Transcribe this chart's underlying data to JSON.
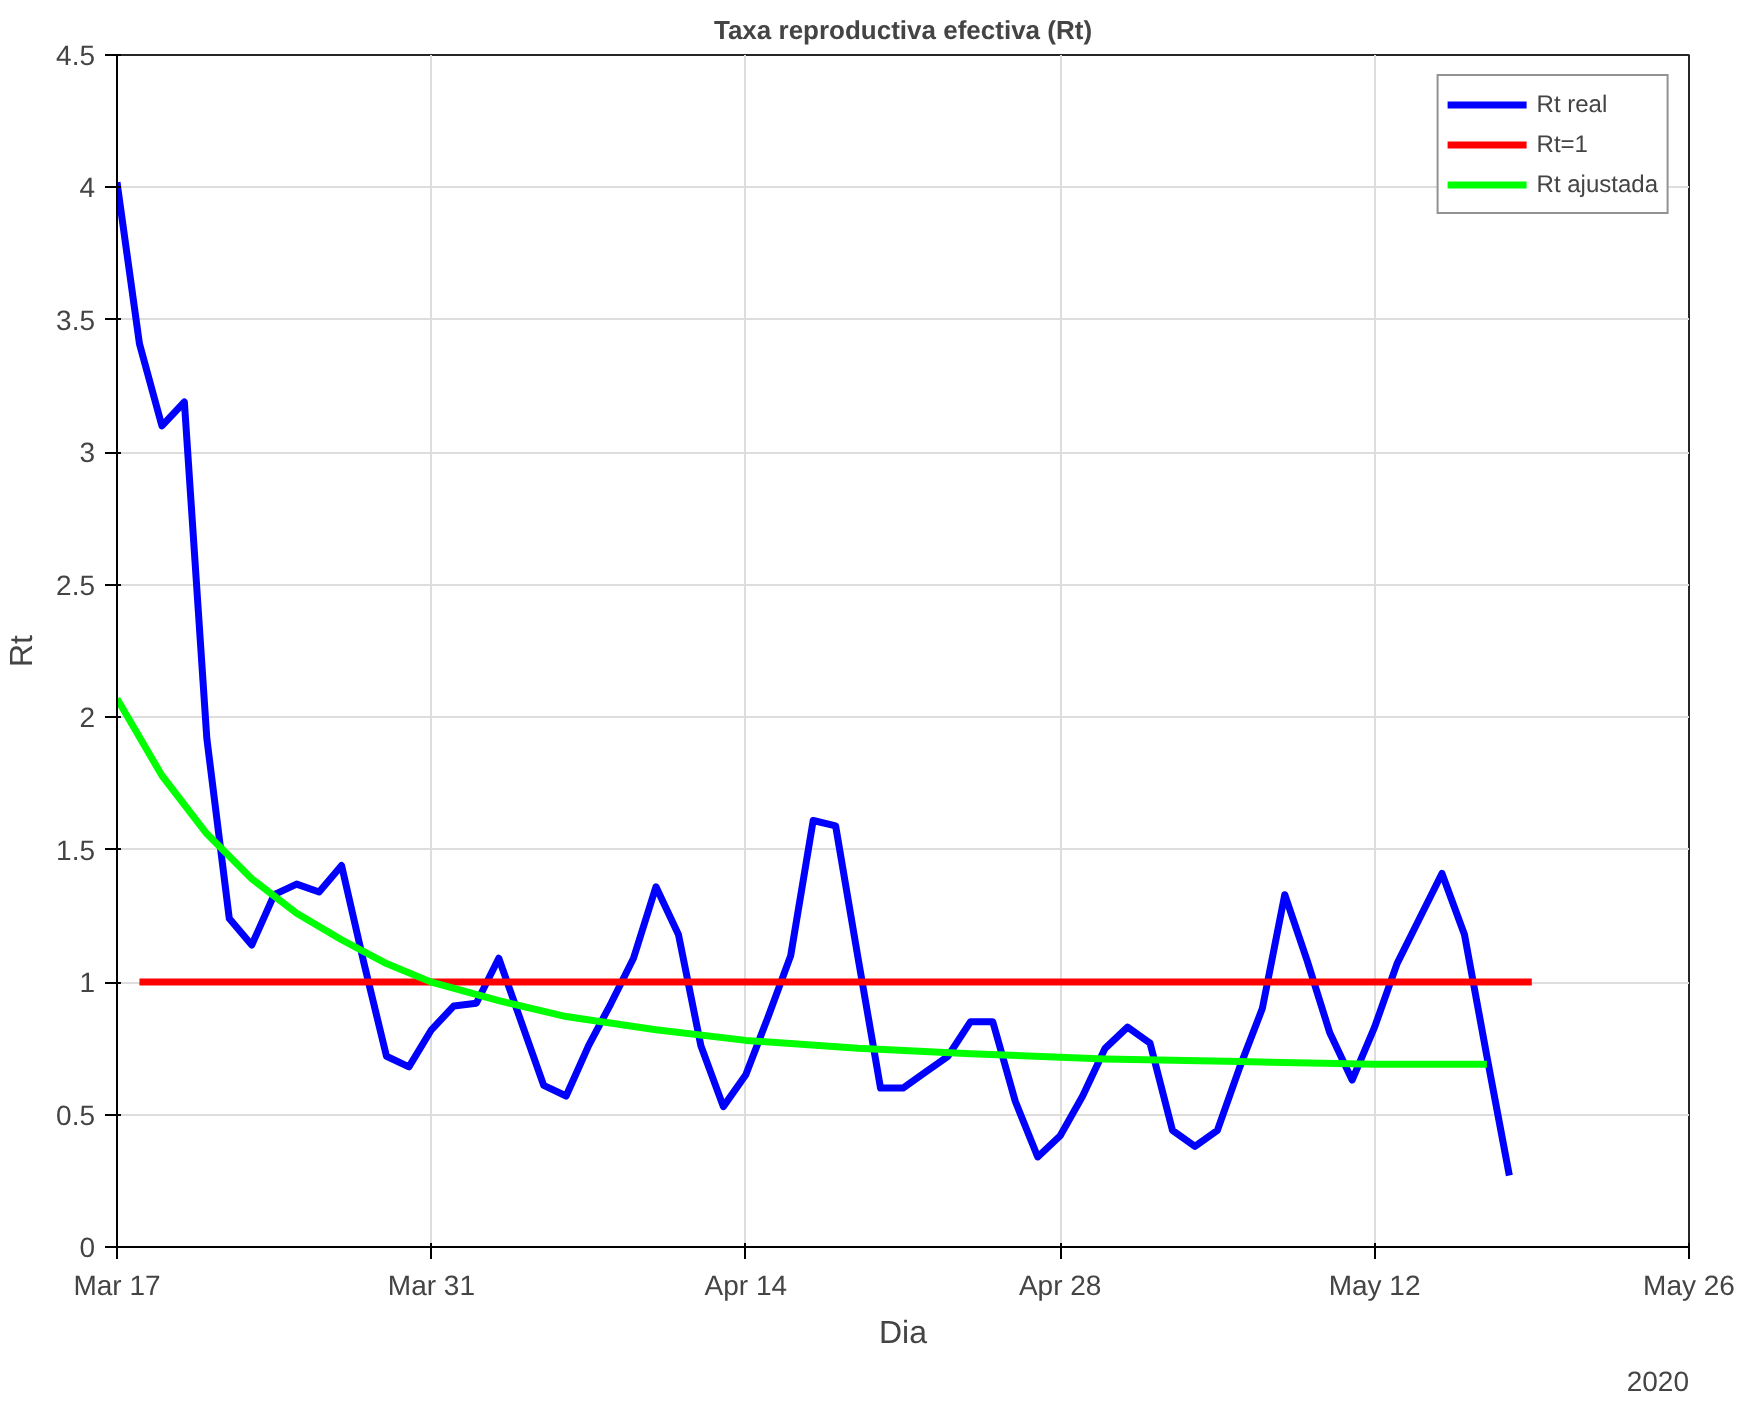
{
  "chart_data": {
    "type": "line",
    "title": "Taxa reproductiva efectiva (Rt)",
    "xlabel": "Dia",
    "ylabel": "Rt",
    "annotations": [
      "2020"
    ],
    "xlim": [
      "2020-03-17",
      "2020-05-26"
    ],
    "xticks": [
      {
        "value": "2020-03-17",
        "label": "Mar 17"
      },
      {
        "value": "2020-03-31",
        "label": "Mar 31"
      },
      {
        "value": "2020-04-14",
        "label": "Apr 14"
      },
      {
        "value": "2020-04-28",
        "label": "Apr 28"
      },
      {
        "value": "2020-05-12",
        "label": "May 12"
      },
      {
        "value": "2020-05-26",
        "label": "May 26"
      }
    ],
    "ylim": [
      0,
      4.5
    ],
    "yticks": [
      0,
      0.5,
      1,
      1.5,
      2,
      2.5,
      3,
      3.5,
      4,
      4.5
    ],
    "grid": true,
    "legend": "top right",
    "line_style": "solid",
    "series": [
      {
        "name": "Rt real",
        "color": "#0000ff",
        "x": [
          "2020-03-17",
          "2020-03-18",
          "2020-03-19",
          "2020-03-20",
          "2020-03-21",
          "2020-03-22",
          "2020-03-23",
          "2020-03-24",
          "2020-03-25",
          "2020-03-26",
          "2020-03-27",
          "2020-03-28",
          "2020-03-29",
          "2020-03-30",
          "2020-03-31",
          "2020-04-01",
          "2020-04-02",
          "2020-04-03",
          "2020-04-04",
          "2020-04-05",
          "2020-04-06",
          "2020-04-07",
          "2020-04-08",
          "2020-04-09",
          "2020-04-10",
          "2020-04-11",
          "2020-04-12",
          "2020-04-13",
          "2020-04-14",
          "2020-04-15",
          "2020-04-16",
          "2020-04-17",
          "2020-04-18",
          "2020-04-19",
          "2020-04-20",
          "2020-04-21",
          "2020-04-22",
          "2020-04-23",
          "2020-04-24",
          "2020-04-25",
          "2020-04-26",
          "2020-04-27",
          "2020-04-28",
          "2020-04-29",
          "2020-04-30",
          "2020-05-01",
          "2020-05-02",
          "2020-05-03",
          "2020-05-04",
          "2020-05-05",
          "2020-05-06",
          "2020-05-07",
          "2020-05-08",
          "2020-05-09",
          "2020-05-10",
          "2020-05-11",
          "2020-05-12",
          "2020-05-13",
          "2020-05-14",
          "2020-05-15",
          "2020-05-16",
          "2020-05-17",
          "2020-05-18"
        ],
        "values": [
          4.02,
          3.41,
          3.1,
          3.19,
          1.92,
          1.24,
          1.14,
          1.33,
          1.37,
          1.34,
          1.44,
          1.07,
          0.72,
          0.68,
          0.82,
          0.91,
          0.92,
          1.09,
          0.85,
          0.61,
          0.57,
          0.76,
          0.92,
          1.09,
          1.36,
          1.18,
          0.76,
          0.53,
          0.65,
          0.87,
          1.1,
          1.61,
          1.59,
          1.09,
          0.6,
          0.6,
          0.66,
          0.72,
          0.85,
          0.85,
          0.55,
          0.34,
          0.42,
          0.57,
          0.75,
          0.83,
          0.77,
          0.44,
          0.38,
          0.44,
          0.68,
          0.9,
          1.33,
          1.08,
          0.81,
          0.63,
          0.83,
          1.07,
          1.24,
          1.41,
          1.18,
          0.72,
          0.27
        ]
      },
      {
        "name": "Rt=1",
        "color": "#ff0000",
        "x": [
          "2020-03-18",
          "2020-05-19"
        ],
        "values": [
          1,
          1
        ]
      },
      {
        "name": "Rt ajustada",
        "color": "#00ff00",
        "x": [
          "2020-03-17",
          "2020-03-19",
          "2020-03-21",
          "2020-03-23",
          "2020-03-25",
          "2020-03-27",
          "2020-03-29",
          "2020-03-31",
          "2020-04-03",
          "2020-04-06",
          "2020-04-10",
          "2020-04-14",
          "2020-04-19",
          "2020-04-24",
          "2020-04-30",
          "2020-05-06",
          "2020-05-12",
          "2020-05-17"
        ],
        "values": [
          2.07,
          1.78,
          1.56,
          1.39,
          1.26,
          1.16,
          1.07,
          1.0,
          0.93,
          0.87,
          0.82,
          0.78,
          0.75,
          0.73,
          0.71,
          0.7,
          0.69,
          0.69
        ]
      }
    ]
  }
}
